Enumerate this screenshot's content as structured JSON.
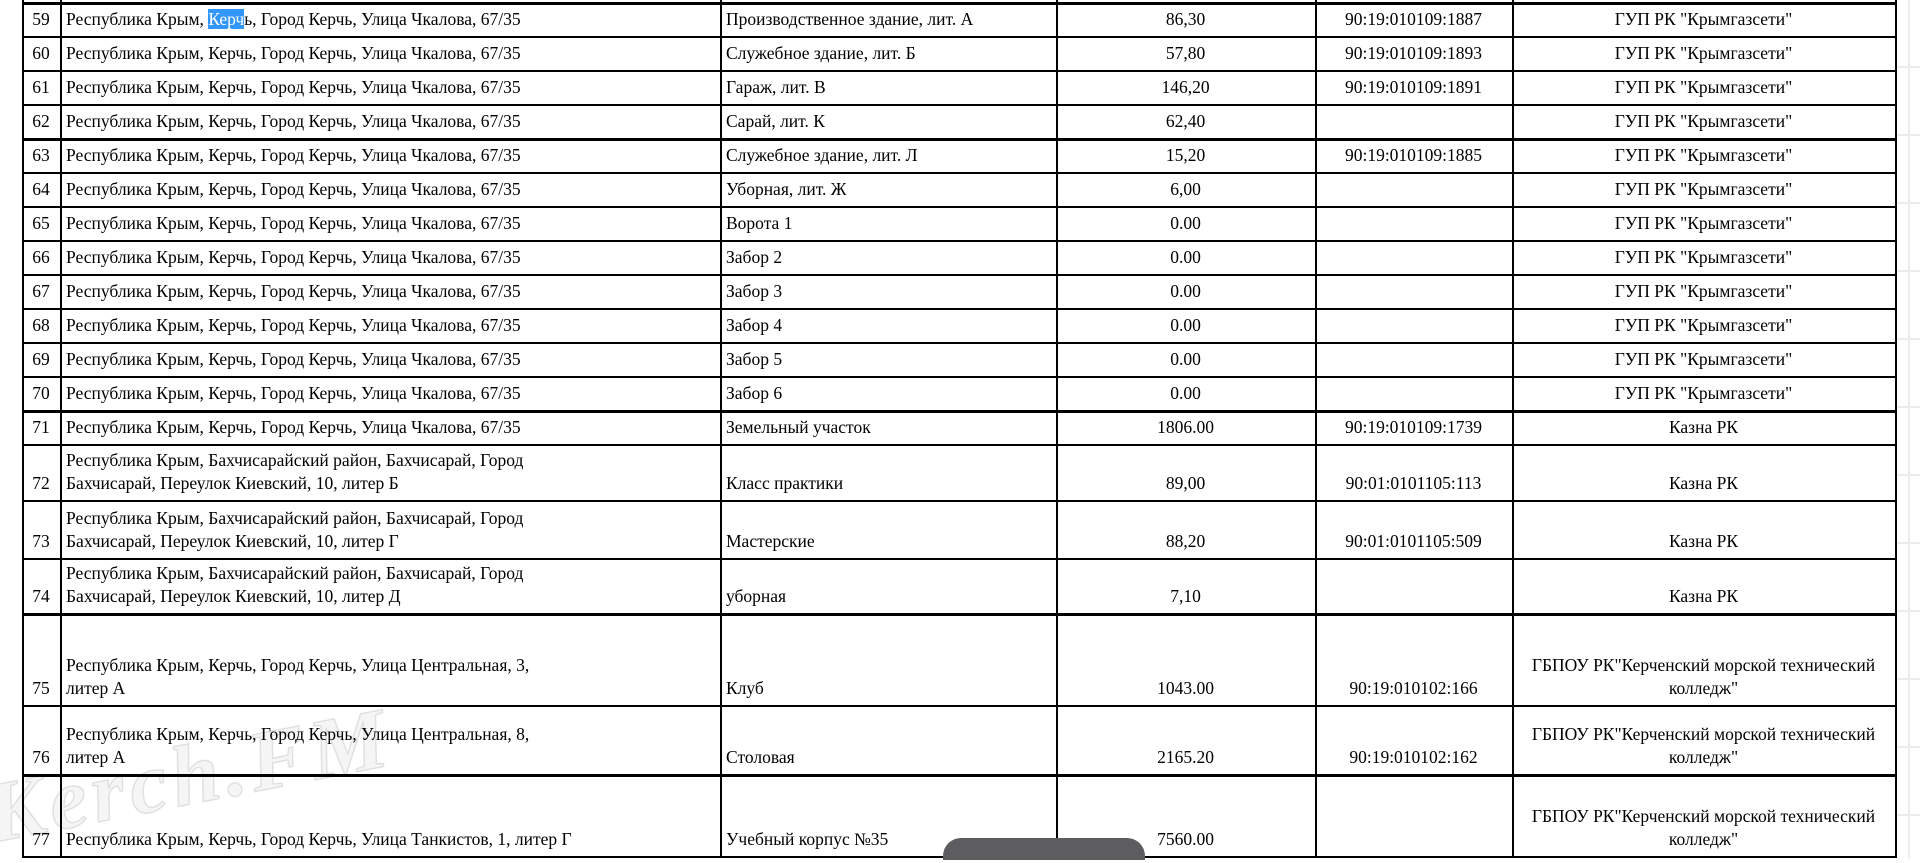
{
  "colors": {
    "selection_highlight": "#3297fd",
    "table_border": "#000000",
    "overlay_pill": "#5d5d5f"
  },
  "watermark": {
    "text": "Kerch.FM"
  },
  "table": {
    "rows": [
      {
        "num": "59",
        "address_pre": "Республика Крым, ",
        "address_sel": "Керч",
        "address_post": "ь, Город Керчь, Улица Чкалова, 67/35",
        "object": "Производственное здание, лит. А",
        "area": "86,30",
        "cadastral": "90:19:010109:1887",
        "owner": "ГУП РК \"Крымгазсети\""
      },
      {
        "num": "60",
        "address_lines": [
          "Республика Крым, Керчь, Город Керчь, Улица Чкалова, 67/35"
        ],
        "object": "Служебное здание, лит. Б",
        "area": "57,80",
        "cadastral": "90:19:010109:1893",
        "owner": "ГУП РК \"Крымгазсети\""
      },
      {
        "num": "61",
        "address_lines": [
          "Республика Крым, Керчь, Город Керчь, Улица Чкалова, 67/35"
        ],
        "object": "Гараж, лит. В",
        "area": "146,20",
        "cadastral": "90:19:010109:1891",
        "owner": "ГУП РК \"Крымгазсети\""
      },
      {
        "num": "62",
        "address_lines": [
          "Республика Крым, Керчь, Город Керчь, Улица Чкалова, 67/35"
        ],
        "object": "Сарай, лит. К",
        "area": "62,40",
        "cadastral": "",
        "owner": "ГУП РК \"Крымгазсети\""
      },
      {
        "num": "63",
        "address_lines": [
          "Республика Крым, Керчь, Город Керчь, Улица Чкалова, 67/35"
        ],
        "object": "Служебное здание, лит. Л",
        "area": "15,20",
        "cadastral": "90:19:010109:1885",
        "owner": "ГУП РК \"Крымгазсети\""
      },
      {
        "num": "64",
        "address_lines": [
          "Республика Крым, Керчь, Город Керчь, Улица Чкалова, 67/35"
        ],
        "object": "Уборная, лит. Ж",
        "area": "6,00",
        "cadastral": "",
        "owner": "ГУП РК \"Крымгазсети\""
      },
      {
        "num": "65",
        "address_lines": [
          "Республика Крым, Керчь, Город Керчь, Улица Чкалова, 67/35"
        ],
        "object": "Ворота 1",
        "area": "0.00",
        "cadastral": "",
        "owner": "ГУП РК \"Крымгазсети\""
      },
      {
        "num": "66",
        "address_lines": [
          "Республика Крым, Керчь, Город Керчь, Улица Чкалова, 67/35"
        ],
        "object": "Забор 2",
        "area": "0.00",
        "cadastral": "",
        "owner": "ГУП РК \"Крымгазсети\""
      },
      {
        "num": "67",
        "address_lines": [
          "Республика Крым, Керчь, Город Керчь, Улица Чкалова, 67/35"
        ],
        "object": "Забор 3",
        "area": "0.00",
        "cadastral": "",
        "owner": "ГУП РК \"Крымгазсети\""
      },
      {
        "num": "68",
        "address_lines": [
          "Республика Крым, Керчь, Город Керчь, Улица Чкалова, 67/35"
        ],
        "object": "Забор 4",
        "area": "0.00",
        "cadastral": "",
        "owner": "ГУП РК \"Крымгазсети\""
      },
      {
        "num": "69",
        "address_lines": [
          "Республика Крым, Керчь, Город Керчь, Улица Чкалова, 67/35"
        ],
        "object": "Забор 5",
        "area": "0.00",
        "cadastral": "",
        "owner": "ГУП РК \"Крымгазсети\""
      },
      {
        "num": "70",
        "address_lines": [
          "Республика Крым, Керчь, Город Керчь, Улица Чкалова, 67/35"
        ],
        "object": "Забор 6",
        "area": "0.00",
        "cadastral": "",
        "owner": "ГУП РК \"Крымгазсети\""
      },
      {
        "num": "71",
        "address_lines": [
          "Республика Крым, Керчь, Город Керчь, Улица Чкалова, 67/35"
        ],
        "object": "Земельный участок",
        "area": "1806.00",
        "cadastral": "90:19:010109:1739",
        "owner": "Казна РК"
      },
      {
        "num": "72",
        "address_lines": [
          "Республика Крым, Бахчисарайский район, Бахчисарай, Город",
          "Бахчисарай, Переулок Киевский, 10, литер Б"
        ],
        "object": "Класс практики",
        "area": "89,00",
        "cadastral": "90:01:0101105:113",
        "owner": "Казна РК"
      },
      {
        "num": "73",
        "address_lines": [
          "Республика Крым, Бахчисарайский район, Бахчисарай, Город",
          "Бахчисарай, Переулок Киевский, 10, литер Г"
        ],
        "object": "Мастерские",
        "area": "88,20",
        "cadastral": "90:01:0101105:509",
        "owner": "Казна РК"
      },
      {
        "num": "74",
        "address_lines": [
          "Республика Крым, Бахчисарайский район, Бахчисарай, Город",
          "Бахчисарай, Переулок Киевский, 10, литер Д"
        ],
        "object": "уборная",
        "area": "7,10",
        "cadastral": "",
        "owner": "Казна РК"
      },
      {
        "num": "75",
        "address_lines": [
          "Республика Крым, Керчь, Город Керчь, Улица Центральная, 3,",
          "литер А"
        ],
        "object": "Клуб",
        "area": "1043.00",
        "cadastral": "90:19:010102:166",
        "owner": "ГБПОУ РК\"Керченский морской технический колледж\""
      },
      {
        "num": "76",
        "address_lines": [
          "Республика Крым, Керчь, Город Керчь, Улица Центральная, 8,",
          "литер А"
        ],
        "object": "Столовая",
        "area": "2165.20",
        "cadastral": "90:19:010102:162",
        "owner": "ГБПОУ РК\"Керченский морской технический колледж\""
      },
      {
        "num": "77",
        "address_lines": [
          "Республика Крым, Керчь, Город Керчь, Улица Танкистов, 1, литер Г"
        ],
        "object": "Учебный корпус №35",
        "area": "7560.00",
        "cadastral": "",
        "owner": "ГБПОУ РК\"Керченский морской технический колледж\""
      }
    ]
  }
}
